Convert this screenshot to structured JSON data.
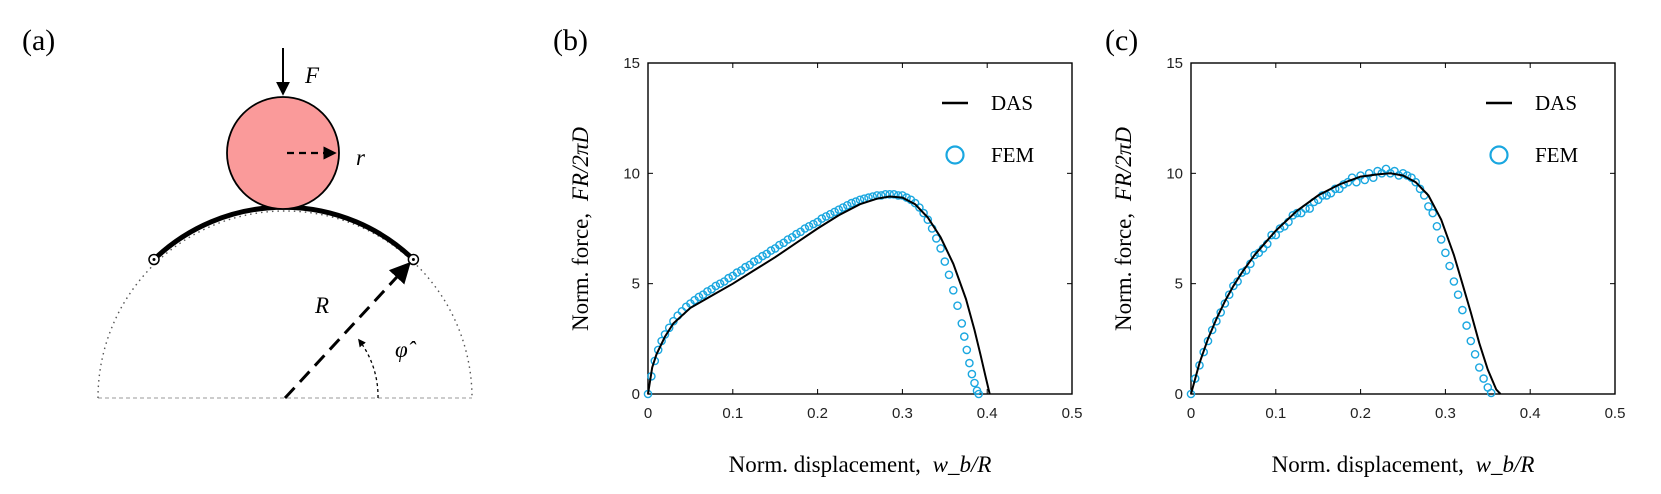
{
  "diagram": {
    "panel_label": "(a)",
    "force_label": "F",
    "small_radius_label": "r",
    "big_radius_label": "R",
    "angle_label": "φ̂",
    "colors": {
      "sphere_fill": "#fa9a9a",
      "ground": "#bbbbbb"
    }
  },
  "chart_data": [
    {
      "type": "line",
      "panel_label": "(b)",
      "xlabel": "Norm. displacement,",
      "xlabel_math": "w_b/R",
      "ylabel": "Norm. force,",
      "ylabel_math": "FR/2πD",
      "xlim": [
        0,
        0.5
      ],
      "ylim": [
        0,
        15
      ],
      "xticks": [
        "0",
        "0.1",
        "0.2",
        "0.3",
        "0.4",
        "0.5"
      ],
      "yticks": [
        "0",
        "5",
        "10",
        "15"
      ],
      "grid": false,
      "legend_position": "top-right",
      "series": [
        {
          "name": "DAS",
          "style": "line",
          "color": "#000000",
          "x": [
            0,
            0.005,
            0.01,
            0.02,
            0.03,
            0.05,
            0.075,
            0.1,
            0.125,
            0.15,
            0.175,
            0.2,
            0.225,
            0.25,
            0.27,
            0.285,
            0.3,
            0.315,
            0.33,
            0.345,
            0.36,
            0.375,
            0.385,
            0.392,
            0.398,
            0.403
          ],
          "y": [
            0,
            1.2,
            1.8,
            2.6,
            3.2,
            3.9,
            4.45,
            5.0,
            5.6,
            6.2,
            6.85,
            7.5,
            8.1,
            8.6,
            8.85,
            8.95,
            8.9,
            8.6,
            8.0,
            7.1,
            5.9,
            4.3,
            2.9,
            1.8,
            0.8,
            0
          ]
        },
        {
          "name": "FEM",
          "style": "markers",
          "color": "#1aa7e0",
          "x": [
            0,
            0.004,
            0.008,
            0.012,
            0.016,
            0.02,
            0.025,
            0.03,
            0.035,
            0.04,
            0.045,
            0.05,
            0.055,
            0.06,
            0.065,
            0.07,
            0.075,
            0.08,
            0.085,
            0.09,
            0.095,
            0.1,
            0.105,
            0.11,
            0.115,
            0.12,
            0.125,
            0.13,
            0.135,
            0.14,
            0.145,
            0.15,
            0.155,
            0.16,
            0.165,
            0.17,
            0.175,
            0.18,
            0.185,
            0.19,
            0.195,
            0.2,
            0.205,
            0.21,
            0.215,
            0.22,
            0.225,
            0.23,
            0.235,
            0.24,
            0.245,
            0.25,
            0.255,
            0.26,
            0.265,
            0.27,
            0.275,
            0.28,
            0.285,
            0.29,
            0.295,
            0.3,
            0.305,
            0.31,
            0.315,
            0.32,
            0.325,
            0.33,
            0.335,
            0.34,
            0.345,
            0.35,
            0.355,
            0.36,
            0.365,
            0.37,
            0.373,
            0.376,
            0.379,
            0.382,
            0.385,
            0.388,
            0.39
          ],
          "y": [
            0,
            0.8,
            1.5,
            2.0,
            2.4,
            2.7,
            3.0,
            3.3,
            3.55,
            3.75,
            3.95,
            4.1,
            4.25,
            4.4,
            4.5,
            4.65,
            4.75,
            4.9,
            5.0,
            5.1,
            5.25,
            5.35,
            5.5,
            5.6,
            5.75,
            5.85,
            6.0,
            6.1,
            6.25,
            6.35,
            6.5,
            6.6,
            6.75,
            6.85,
            7.0,
            7.1,
            7.25,
            7.35,
            7.5,
            7.6,
            7.7,
            7.8,
            7.95,
            8.05,
            8.15,
            8.25,
            8.35,
            8.45,
            8.55,
            8.65,
            8.72,
            8.8,
            8.85,
            8.9,
            8.95,
            9.0,
            9.0,
            9.05,
            9.05,
            9.05,
            9.0,
            9.0,
            8.9,
            8.8,
            8.65,
            8.45,
            8.2,
            7.9,
            7.5,
            7.05,
            6.6,
            6.0,
            5.4,
            4.7,
            4.0,
            3.2,
            2.6,
            2.0,
            1.4,
            0.9,
            0.5,
            0.15,
            0
          ]
        }
      ]
    },
    {
      "type": "line",
      "panel_label": "(c)",
      "xlabel": "Norm. displacement,",
      "xlabel_math": "w_b/R",
      "ylabel": "Norm. force,",
      "ylabel_math": "FR/2πD",
      "xlim": [
        0,
        0.5
      ],
      "ylim": [
        0,
        15
      ],
      "xticks": [
        "0",
        "0.1",
        "0.2",
        "0.3",
        "0.4",
        "0.5"
      ],
      "yticks": [
        "0",
        "5",
        "10",
        "15"
      ],
      "grid": false,
      "legend_position": "top-right",
      "series": [
        {
          "name": "DAS",
          "style": "line",
          "color": "#000000",
          "x": [
            0,
            0.01,
            0.02,
            0.03,
            0.04,
            0.05,
            0.06,
            0.075,
            0.1,
            0.125,
            0.15,
            0.175,
            0.2,
            0.22,
            0.235,
            0.25,
            0.265,
            0.28,
            0.295,
            0.31,
            0.32,
            0.33,
            0.34,
            0.35,
            0.36,
            0.365
          ],
          "y": [
            0,
            1.4,
            2.5,
            3.4,
            4.2,
            4.9,
            5.5,
            6.3,
            7.4,
            8.3,
            9.0,
            9.5,
            9.85,
            9.95,
            10.0,
            9.9,
            9.6,
            9.0,
            7.9,
            6.3,
            5.0,
            3.7,
            2.3,
            1.1,
            0.2,
            0
          ]
        },
        {
          "name": "FEM",
          "style": "markers",
          "color": "#1aa7e0",
          "x": [
            0,
            0.005,
            0.01,
            0.015,
            0.02,
            0.025,
            0.03,
            0.035,
            0.04,
            0.045,
            0.05,
            0.055,
            0.06,
            0.065,
            0.07,
            0.075,
            0.08,
            0.085,
            0.09,
            0.095,
            0.1,
            0.105,
            0.11,
            0.115,
            0.12,
            0.125,
            0.13,
            0.135,
            0.14,
            0.145,
            0.15,
            0.155,
            0.16,
            0.165,
            0.17,
            0.175,
            0.18,
            0.185,
            0.19,
            0.195,
            0.2,
            0.205,
            0.21,
            0.215,
            0.22,
            0.225,
            0.23,
            0.235,
            0.24,
            0.245,
            0.25,
            0.255,
            0.26,
            0.265,
            0.27,
            0.275,
            0.28,
            0.285,
            0.29,
            0.295,
            0.3,
            0.305,
            0.31,
            0.315,
            0.32,
            0.325,
            0.33,
            0.335,
            0.34,
            0.345,
            0.35,
            0.354
          ],
          "y": [
            0,
            0.7,
            1.3,
            1.9,
            2.4,
            2.9,
            3.3,
            3.7,
            4.1,
            4.5,
            4.9,
            5.1,
            5.5,
            5.6,
            5.9,
            6.3,
            6.4,
            6.6,
            6.8,
            7.2,
            7.2,
            7.5,
            7.6,
            7.8,
            8.1,
            8.2,
            8.2,
            8.4,
            8.4,
            8.7,
            8.8,
            9.0,
            9.0,
            9.1,
            9.3,
            9.3,
            9.5,
            9.6,
            9.8,
            9.6,
            9.9,
            9.7,
            10.0,
            9.8,
            10.1,
            10.0,
            10.2,
            10.0,
            10.1,
            9.9,
            10.0,
            9.9,
            9.8,
            9.6,
            9.3,
            9.0,
            8.5,
            8.2,
            7.6,
            7.0,
            6.4,
            5.8,
            5.1,
            4.5,
            3.8,
            3.1,
            2.4,
            1.8,
            1.2,
            0.7,
            0.3,
            0.05
          ]
        }
      ]
    }
  ]
}
